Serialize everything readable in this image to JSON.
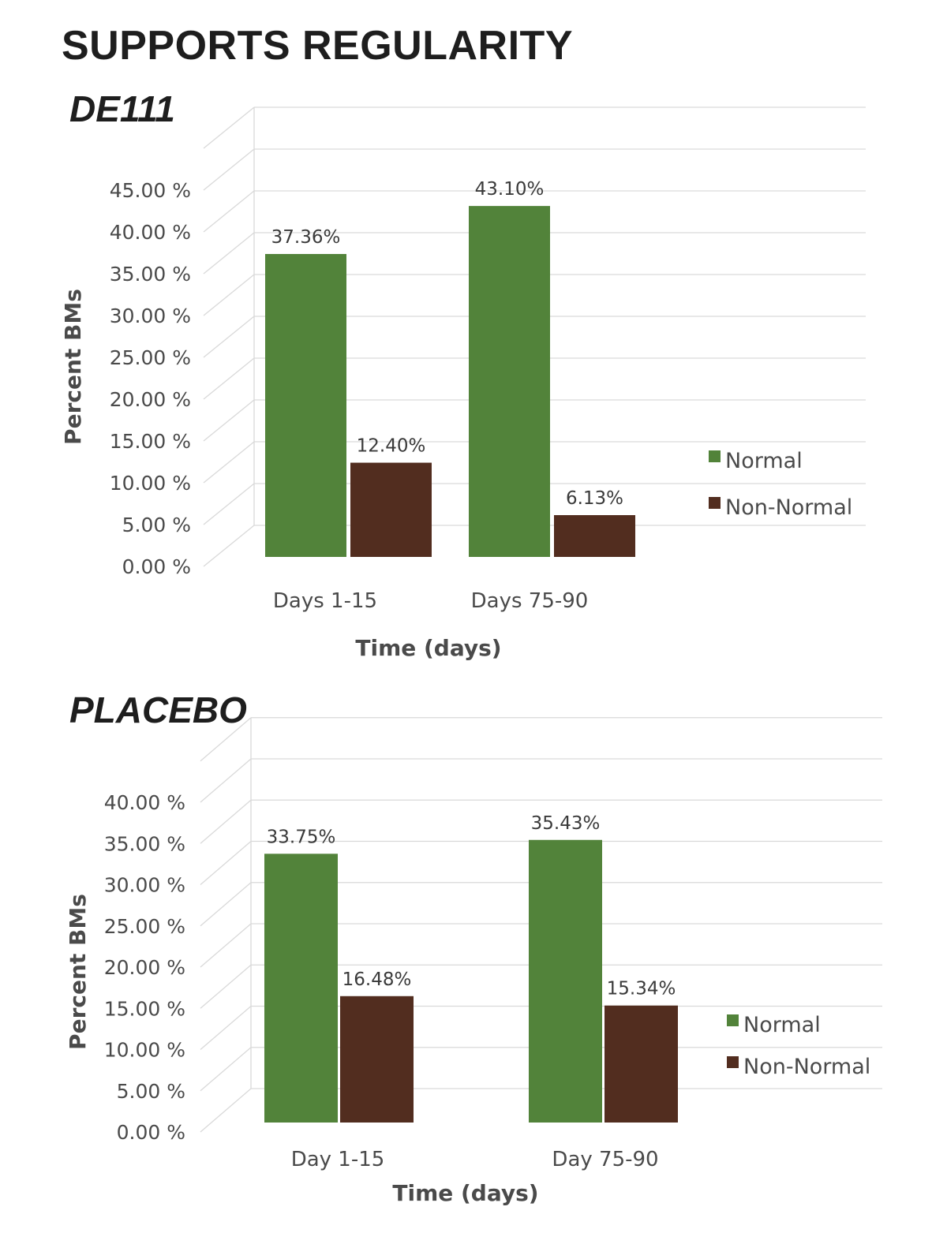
{
  "header": {
    "title": "SUPPORTS REGULARITY"
  },
  "colors": {
    "normal": "#52833a",
    "non_normal": "#522d1f",
    "grid": "#d9d9d9"
  },
  "chart_data": [
    {
      "type": "bar",
      "title": "DE111",
      "categories": [
        "Days 1-15",
        "Days 75-90"
      ],
      "series": [
        {
          "name": "Normal",
          "values": [
            37.36,
            43.1
          ],
          "labels": [
            "37.36%",
            "43.10%"
          ]
        },
        {
          "name": "Non-Normal",
          "values": [
            12.4,
            6.13
          ],
          "labels": [
            "12.40%",
            "6.13%"
          ]
        }
      ],
      "yticks": [
        "0.00 %",
        "5.00 %",
        "10.00 %",
        "15.00 %",
        "20.00 %",
        "25.00 %",
        "30.00 %",
        "35.00 %",
        "40.00 %",
        "45.00 %"
      ],
      "ylim": [
        0,
        45
      ],
      "xlabel": "Time (days)",
      "ylabel": "Percent BMs",
      "legend": "right",
      "grid": true
    },
    {
      "type": "bar",
      "title": "PLACEBO",
      "categories": [
        "Day 1-15",
        "Day 75-90"
      ],
      "series": [
        {
          "name": "Normal",
          "values": [
            33.75,
            35.43
          ],
          "labels": [
            "33.75%",
            "35.43%"
          ]
        },
        {
          "name": "Non-Normal",
          "values": [
            16.48,
            15.34
          ],
          "labels": [
            "16.48%",
            "15.34%"
          ]
        }
      ],
      "yticks": [
        "0.00 %",
        "5.00 %",
        "10.00 %",
        "15.00 %",
        "20.00 %",
        "25.00 %",
        "30.00 %",
        "35.00 %",
        "40.00 %"
      ],
      "ylim": [
        0,
        40
      ],
      "xlabel": "Time (days)",
      "ylabel": "Percent BMs",
      "legend": "right",
      "grid": true
    }
  ]
}
